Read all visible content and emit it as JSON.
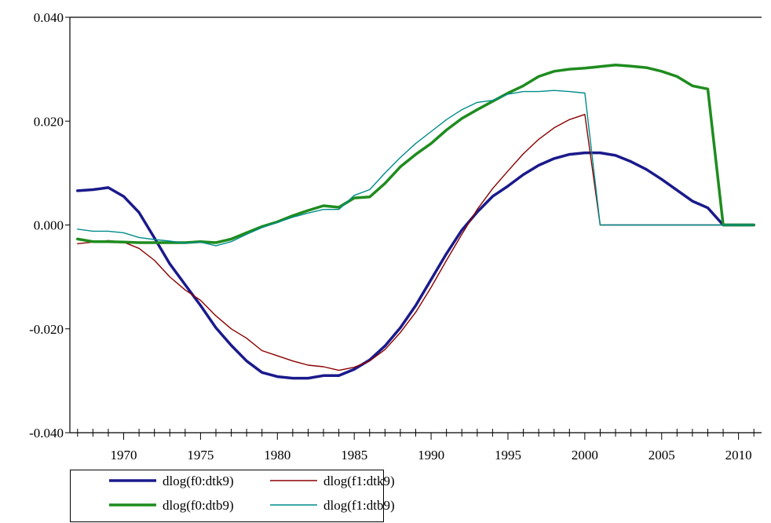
{
  "chart_data": {
    "type": "line",
    "title": "",
    "xlabel": "",
    "ylabel": "",
    "xlim": [
      1966.5,
      2011.5
    ],
    "ylim": [
      -0.04,
      0.04
    ],
    "xticks": [
      1970,
      1975,
      1980,
      1985,
      1990,
      1995,
      2000,
      2005,
      2010
    ],
    "xtick_labels": [
      "1970",
      "1975",
      "1980",
      "1985",
      "1990",
      "1995",
      "2000",
      "2005",
      "2010"
    ],
    "yticks": [
      -0.04,
      -0.02,
      0.0,
      0.02,
      0.04
    ],
    "ytick_labels": [
      "-0.040",
      "-0.020",
      "0.000",
      "0.020",
      "0.040"
    ],
    "grid": false,
    "legend_position": "bottom-left",
    "x": [
      1967,
      1968,
      1969,
      1970,
      1971,
      1972,
      1973,
      1974,
      1975,
      1976,
      1977,
      1978,
      1979,
      1980,
      1981,
      1982,
      1983,
      1984,
      1985,
      1986,
      1987,
      1988,
      1989,
      1990,
      1991,
      1992,
      1993,
      1994,
      1995,
      1996,
      1997,
      1998,
      1999,
      2000,
      2001,
      2002,
      2003,
      2004,
      2005,
      2006,
      2007,
      2008,
      2009,
      2010,
      2011
    ],
    "series": [
      {
        "name": "dlog(f0:dtk9)",
        "color": "#1a1a8c",
        "width": 3.5,
        "values": [
          0.0066,
          0.0068,
          0.0072,
          0.0055,
          0.0024,
          -0.0025,
          -0.0075,
          -0.0115,
          -0.0155,
          -0.0198,
          -0.0232,
          -0.0262,
          -0.0284,
          -0.0292,
          -0.0295,
          -0.0295,
          -0.029,
          -0.029,
          -0.0278,
          -0.026,
          -0.0233,
          -0.0198,
          -0.0155,
          -0.0105,
          -0.0055,
          -0.001,
          0.0025,
          0.0055,
          0.0075,
          0.0097,
          0.0115,
          0.0128,
          0.0136,
          0.0139,
          0.0139,
          0.0134,
          0.0122,
          0.0107,
          0.0088,
          0.0067,
          0.0046,
          0.0033,
          0.0,
          0.0,
          0.0
        ]
      },
      {
        "name": "dlog(f1:dtk9)",
        "color": "#8b0000",
        "width": 1.4,
        "values": [
          -0.0036,
          -0.0033,
          -0.003,
          -0.0033,
          -0.0045,
          -0.0068,
          -0.01,
          -0.0125,
          -0.0145,
          -0.0175,
          -0.02,
          -0.0218,
          -0.0242,
          -0.0252,
          -0.0262,
          -0.027,
          -0.0273,
          -0.028,
          -0.0274,
          -0.0262,
          -0.024,
          -0.0207,
          -0.0168,
          -0.012,
          -0.0068,
          -0.0018,
          0.003,
          0.007,
          0.0104,
          0.0137,
          0.0165,
          0.0187,
          0.0203,
          0.0213,
          0.0,
          0.0,
          0.0,
          0.0,
          0.0,
          0.0,
          0.0,
          0.0,
          0.0,
          0.0,
          0.0
        ]
      },
      {
        "name": "dlog(f0:dtb9)",
        "color": "#1e8c1e",
        "width": 3.5,
        "values": [
          -0.0027,
          -0.0032,
          -0.0032,
          -0.0033,
          -0.0034,
          -0.0034,
          -0.0034,
          -0.0034,
          -0.0032,
          -0.0034,
          -0.0027,
          -0.0015,
          -0.0003,
          0.0006,
          0.0018,
          0.0028,
          0.0037,
          0.0034,
          0.0052,
          0.0054,
          0.008,
          0.0112,
          0.0136,
          0.0157,
          0.0183,
          0.0205,
          0.0222,
          0.0238,
          0.0254,
          0.0268,
          0.0286,
          0.0296,
          0.03,
          0.0302,
          0.0305,
          0.0308,
          0.0306,
          0.0303,
          0.0296,
          0.0286,
          0.0268,
          0.0262,
          0.0,
          0.0,
          0.0
        ]
      },
      {
        "name": "dlog(f1:dtb9)",
        "color": "#008b8b",
        "width": 1.4,
        "values": [
          -0.0008,
          -0.0012,
          -0.0012,
          -0.0015,
          -0.0024,
          -0.0028,
          -0.0031,
          -0.0035,
          -0.0033,
          -0.004,
          -0.0032,
          -0.0018,
          -0.0005,
          0.0005,
          0.0015,
          0.0023,
          0.003,
          0.003,
          0.0057,
          0.0068,
          0.01,
          0.013,
          0.0157,
          0.018,
          0.0203,
          0.0222,
          0.0236,
          0.024,
          0.0252,
          0.0257,
          0.0257,
          0.0259,
          0.0257,
          0.0254,
          0.0,
          0.0,
          0.0,
          0.0,
          0.0,
          0.0,
          0.0,
          0.0,
          0.0,
          0.0,
          0.0
        ]
      }
    ]
  }
}
